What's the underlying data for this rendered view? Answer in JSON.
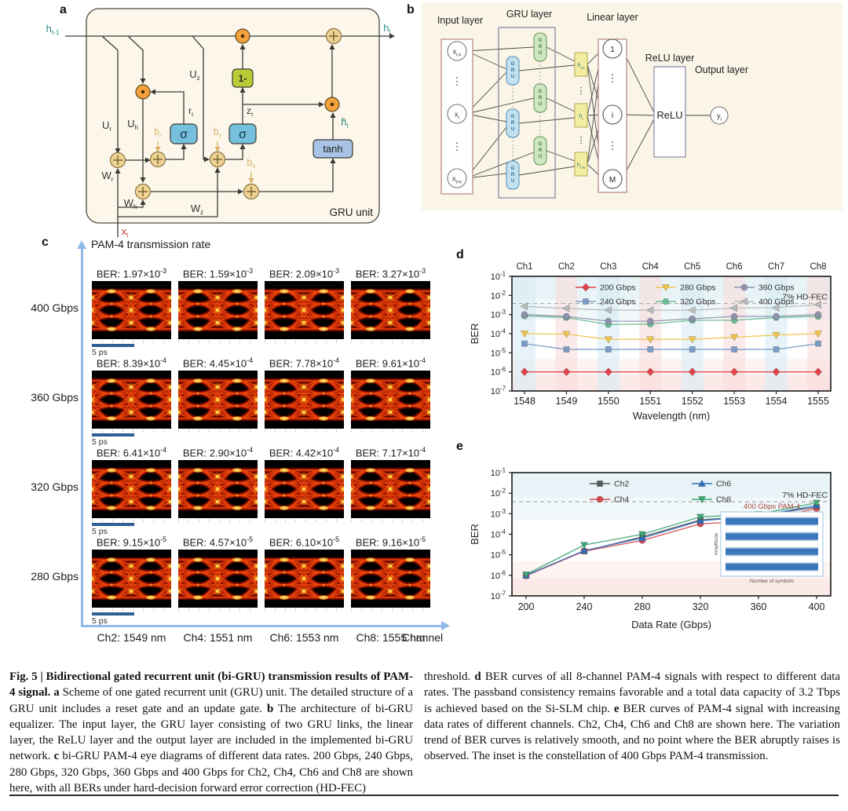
{
  "panel_a": {
    "label": "a",
    "box_label": "GRU unit",
    "node_texts": {
      "sigma": "σ",
      "one_minus": "1-",
      "tanh": "tanh"
    },
    "labels": {
      "h_prev": {
        "base": "h",
        "sub": "t-1"
      },
      "h_t": {
        "base": "h",
        "sub": "t"
      },
      "h_tilde": {
        "base": "h̃",
        "sub": "t"
      },
      "x_t": {
        "base": "x",
        "sub": "t"
      },
      "u_r": {
        "base": "U",
        "sub": "r"
      },
      "u_h": {
        "base": "U",
        "sub": "h"
      },
      "u_z": {
        "base": "U",
        "sub": "z"
      },
      "w_r": {
        "base": "W",
        "sub": "r"
      },
      "w_h": {
        "base": "W",
        "sub": "h"
      },
      "w_z": {
        "base": "W",
        "sub": "z"
      },
      "b_r": {
        "base": "b",
        "sub": "r"
      },
      "b_z": {
        "base": "b",
        "sub": "z"
      },
      "b_h": {
        "base": "b",
        "sub": "h"
      },
      "r_t": {
        "base": "r",
        "sub": "t"
      },
      "z_t": {
        "base": "z",
        "sub": "t"
      }
    },
    "colors": {
      "cream": "#fcf7ea",
      "teal": "#2e8b83",
      "red": "#c0392b",
      "tan": "#d8b269",
      "odot_fill": "#f2a13c",
      "oplus_fill": "#eed395",
      "sigma_fill": "#74c0dd",
      "oneminus_fill": "#b8cc35",
      "tanh_fill": "#a9c3e6",
      "wire": "#3a3a34"
    }
  },
  "panel_b": {
    "label": "b",
    "layer_labels": [
      "Input layer",
      "GRU layer",
      "Linear layer",
      "ReLU layer",
      "Output layer"
    ],
    "gru_text": "GRU",
    "relu_text": "ReLU",
    "x_nodes": [
      {
        "base": "x",
        "sub": "t-k"
      },
      {
        "base": "x",
        "sub": "t"
      },
      {
        "base": "x",
        "sub": "t+k"
      }
    ],
    "h_nodes": [
      {
        "base": "h",
        "sub": "t-k"
      },
      {
        "base": "h",
        "sub": "t"
      },
      {
        "base": "h",
        "sub": "t+k"
      }
    ],
    "linear_nodes": [
      "1",
      "i",
      "M"
    ],
    "y_node": {
      "base": "y",
      "sub": "t"
    },
    "dots": "⋮",
    "colors": {
      "cream": "#fbf5e8",
      "pink_border": "#bb8a8a",
      "purple_border": "#8787a8",
      "blue_gru_fill": "#c3e2f0",
      "blue_gru_border": "#5a93bb",
      "blue_gru_text": "#2d6a96",
      "green_gru_fill": "#cfe6c2",
      "green_gru_border": "#6f9a5f",
      "green_gru_text": "#3f7a3a",
      "h_fill": "#f3eda2",
      "h_border": "#b0a855",
      "h_text": "#2e7d7d",
      "wire": "#4a4a44"
    }
  },
  "panel_c": {
    "label": "c",
    "y_axis_label": "PAM-4 transmission rate",
    "x_axis_label": "Channel",
    "ber_prefix": "BER: ",
    "scale_bar_label": "5 ps",
    "rows": [
      {
        "rate": "400 Gbps",
        "bers": [
          {
            "c": "1.97",
            "e": "-3"
          },
          {
            "c": "1.59",
            "e": "-3"
          },
          {
            "c": "2.09",
            "e": "-3"
          },
          {
            "c": "3.27",
            "e": "-3"
          }
        ]
      },
      {
        "rate": "360 Gbps",
        "bers": [
          {
            "c": "8.39",
            "e": "-4"
          },
          {
            "c": "4.45",
            "e": "-4"
          },
          {
            "c": "7.78",
            "e": "-4"
          },
          {
            "c": "9.61",
            "e": "-4"
          }
        ]
      },
      {
        "rate": "320 Gbps",
        "bers": [
          {
            "c": "6.41",
            "e": "-4"
          },
          {
            "c": "2.90",
            "e": "-4"
          },
          {
            "c": "4.42",
            "e": "-4"
          },
          {
            "c": "7.17",
            "e": "-4"
          }
        ]
      },
      {
        "rate": "280 Gbps",
        "bers": [
          {
            "c": "9.15",
            "e": "-5"
          },
          {
            "c": "4.57",
            "e": "-5"
          },
          {
            "c": "6.10",
            "e": "-5"
          },
          {
            "c": "9.16",
            "e": "-5"
          }
        ]
      }
    ],
    "columns": [
      "Ch2: 1549 nm",
      "Ch4: 1551 nm",
      "Ch6: 1553 nm",
      "Ch8: 1555 nm"
    ],
    "axis_color": "#8fb9e8",
    "scale_bar_color": "#2e5f96"
  },
  "chart_data": [
    {
      "type": "line",
      "panel_label": "d",
      "xlabel": "Wavelength (nm)",
      "ylabel": "BER",
      "x": [
        1548,
        1549,
        1550,
        1551,
        1552,
        1553,
        1554,
        1555
      ],
      "top_labels": [
        "Ch1",
        "Ch2",
        "Ch3",
        "Ch4",
        "Ch5",
        "Ch6",
        "Ch7",
        "Ch8"
      ],
      "ylog_exponents": [
        -1,
        -2,
        -3,
        -4,
        -5,
        -6,
        -7
      ],
      "threshold": {
        "value": 0.0038,
        "label": "7%  HD-FEC"
      },
      "legend_position": "top-center, 2 rows x 3 cols",
      "grid": false,
      "band_colors": [
        "#d7ebf3",
        "#f9dcda"
      ],
      "series": [
        {
          "name": "200 Gbps",
          "color": "#e4434b",
          "marker": "diamond",
          "values": [
            1e-06,
            1e-06,
            1e-06,
            1e-06,
            1e-06,
            1e-06,
            1e-06,
            1e-06
          ]
        },
        {
          "name": "240 Gbps",
          "color": "#7a9cc6",
          "marker": "square",
          "values": [
            3e-05,
            1.5e-05,
            1.5e-05,
            1.5e-05,
            1.5e-05,
            1.5e-05,
            1.5e-05,
            3e-05
          ]
        },
        {
          "name": "280 Gbps",
          "color": "#efc54d",
          "marker": "triangle-down",
          "values": [
            0.0001,
            9.5e-05,
            5e-05,
            5e-05,
            5e-05,
            6.5e-05,
            8.5e-05,
            0.0001
          ]
        },
        {
          "name": "320 Gbps",
          "color": "#6cbd94",
          "marker": "circle",
          "values": [
            0.00085,
            0.0007,
            0.0003,
            0.00032,
            0.0005,
            0.0005,
            0.0007,
            0.0008
          ]
        },
        {
          "name": "360 Gbps",
          "color": "#8f92ad",
          "marker": "circle",
          "values": [
            0.001,
            0.0008,
            0.00045,
            0.00045,
            0.0006,
            0.0008,
            0.0008,
            0.001
          ]
        },
        {
          "name": "400 Gbps",
          "color": "#b8bcbc",
          "marker": "triangle-left",
          "values": [
            0.0027,
            0.0021,
            0.0017,
            0.0017,
            0.0017,
            0.0022,
            0.0023,
            0.0033
          ]
        }
      ]
    },
    {
      "type": "line",
      "panel_label": "e",
      "xlabel": "Data Rate (Gbps)",
      "ylabel": "BER",
      "x": [
        200,
        240,
        280,
        320,
        360,
        400
      ],
      "ylog_exponents": [
        -1,
        -2,
        -3,
        -4,
        -5,
        -6,
        -7
      ],
      "threshold": {
        "value": 0.0038,
        "label": "7%  HD-FEC"
      },
      "legend_position": "top-center, 2 rows x 2 cols",
      "grid": false,
      "series": [
        {
          "name": "Ch2",
          "color": "#54585c",
          "marker": "square",
          "values": [
            1e-06,
            1.5e-05,
            7.5e-05,
            0.0005,
            0.0008,
            0.0021
          ]
        },
        {
          "name": "Ch4",
          "color": "#d6494f",
          "marker": "circle",
          "values": [
            9.5e-07,
            1.5e-05,
            5e-05,
            0.00032,
            0.00045,
            0.0018
          ]
        },
        {
          "name": "Ch6",
          "color": "#2e6fbf",
          "marker": "triangle-up",
          "values": [
            1e-06,
            1.6e-05,
            6.5e-05,
            0.00045,
            0.0008,
            0.0025
          ]
        },
        {
          "name": "Ch8",
          "color": "#3fa874",
          "marker": "triangle-down",
          "values": [
            1.1e-06,
            3e-05,
            0.0001,
            0.0007,
            0.00095,
            0.0034
          ]
        }
      ],
      "inset": {
        "title": "400 Gbps PAM-4",
        "xlabel": "Number of symbols",
        "ylabel": "Amplitude",
        "band_color": "#2a6cb5",
        "title_color": "#a8473f",
        "levels": 4
      }
    }
  ],
  "caption": {
    "left": [
      {
        "t": "Fig. 5 | Bidirectional gated recurrent unit (bi-GRU) transmission results of PAM-4 signal. ",
        "b": true
      },
      {
        "t": "a",
        "b": true
      },
      {
        "t": " Scheme of one gated recurrent unit (GRU) unit. The detailed structure of a GRU unit includes a reset gate and an update gate. ",
        "b": false
      },
      {
        "t": "b",
        "b": true
      },
      {
        "t": " The architecture of bi-GRU equalizer. The input layer, the GRU layer consisting of two GRU links, the linear layer, the ReLU layer and the output layer are included in the implemented bi-GRU network. ",
        "b": false
      },
      {
        "t": "c",
        "b": true
      },
      {
        "t": " bi-GRU PAM-4 eye diagrams of different data rates. 200 Gbps, 240 Gbps, 280 Gbps, 320 Gbps, 360 Gbps and 400 Gbps for Ch2, Ch4, Ch6 and Ch8 are shown here, with all BERs under hard-decision forward error correction (HD-FEC)",
        "b": false
      }
    ],
    "right": [
      {
        "t": "threshold. ",
        "b": false
      },
      {
        "t": "d",
        "b": true
      },
      {
        "t": " BER curves of all 8-channel PAM-4 signals with respect to different data rates. The passband consistency remains favorable and a total data capacity of 3.2 Tbps is achieved based on the Si-SLM chip. ",
        "b": false
      },
      {
        "t": "e",
        "b": true
      },
      {
        "t": " BER curves of PAM-4 signal with increasing data rates of different channels. Ch2, Ch4, Ch6 and Ch8 are shown here. The variation trend of BER curves is relatively smooth, and no point where the BER abruptly raises is observed. The inset is the constellation of 400 Gbps PAM-4 transmission.",
        "b": false
      }
    ]
  }
}
